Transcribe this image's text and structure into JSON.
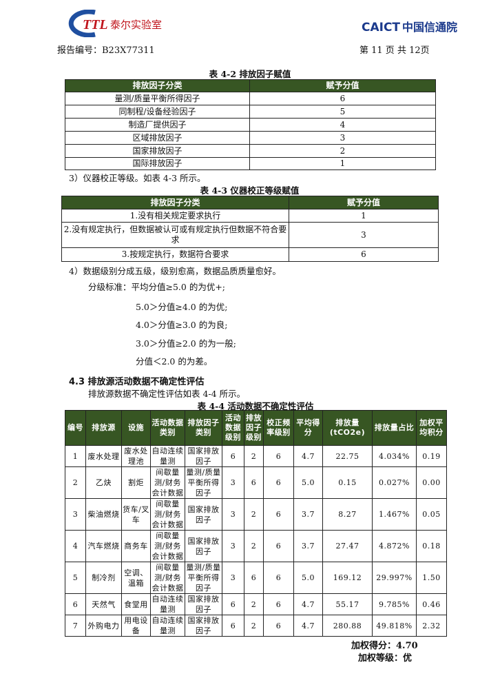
{
  "header": {
    "logo_left": "TTL泰尔实验室",
    "logo_right_en": "CAICT",
    "logo_right_cn": "中国信通院",
    "report_no": "报告编号：B23X77311",
    "page": "第 11 页  共 12页"
  },
  "t42": {
    "caption": "表 4-2 排放因子赋值",
    "headers": [
      "排放因子分类",
      "赋予分值"
    ],
    "rows": [
      [
        "量测/质量平衡所得因子",
        "6"
      ],
      [
        "同制程/设备经验因子",
        "5"
      ],
      [
        "制造厂提供因子",
        "4"
      ],
      [
        "区域排放因子",
        "3"
      ],
      [
        "国家排放因子",
        "2"
      ],
      [
        "国际排放因子",
        "1"
      ]
    ]
  },
  "p3": "3）仪器校正等级。如表 4-3 所示。",
  "t43": {
    "caption": "表 4-3 仪器校正等级赋值",
    "headers": [
      "排放因子分类",
      "赋予分值"
    ],
    "rows": [
      [
        "1.没有相关规定要求执行",
        "1"
      ],
      [
        "2.没有规定执行，但数据被认可或有规定执行但数据不符合要求",
        "3"
      ],
      [
        "3.按规定执行，数据符合要求",
        "6"
      ]
    ]
  },
  "p4": "4）数据级别分成五级，级别愈高，数据品质质量愈好。",
  "grades": [
    "分级标准：平均分值≥5.0 的为优+;",
    "5.0＞分值≥4.0 的为优;",
    "4.0＞分值≥3.0 的为良;",
    "3.0＞分值≥2.0 的为一般;",
    "分值＜2.0 的为差。"
  ],
  "s43": {
    "title": "4.3 排放源活动数据不确定性评估",
    "intro": "排放源数据不确定性评估如表 4-4 所示。"
  },
  "t44": {
    "caption": "表 4-4 活动数据不确定性评估",
    "headers": [
      "编号",
      "排放源",
      "设施",
      "活动数据类别",
      "排放因子类别",
      "活动数据级别",
      "排放因子级别",
      "校正频率级别",
      "平均得分",
      "排放量(tCO2e)",
      "排放量占比",
      "加权平均积分"
    ],
    "rows": [
      [
        "1",
        "废水处理",
        "废水处理池",
        "自动连续量测",
        "国家排放因子",
        "6",
        "2",
        "6",
        "4.7",
        "22.75",
        "4.034%",
        "0.19"
      ],
      [
        "2",
        "乙炔",
        "割炬",
        "间歇量测/财务会计数据",
        "量测/质量平衡所得因子",
        "3",
        "6",
        "6",
        "5.0",
        "0.15",
        "0.027%",
        "0.00"
      ],
      [
        "3",
        "柴油燃烧",
        "货车/叉车",
        "间歇量测/财务会计数据",
        "国家排放因子",
        "3",
        "2",
        "6",
        "3.7",
        "8.27",
        "1.467%",
        "0.05"
      ],
      [
        "4",
        "汽车燃烧",
        "商务车",
        "间歇量测/财务会计数据",
        "国家排放因子",
        "3",
        "2",
        "6",
        "3.7",
        "27.47",
        "4.872%",
        "0.18"
      ],
      [
        "5",
        "制冷剂",
        "空调、温箱",
        "间歇量测/财务会计数据",
        "量测/质量平衡所得因子",
        "3",
        "6",
        "6",
        "5.0",
        "169.12",
        "29.997%",
        "1.50"
      ],
      [
        "6",
        "天然气",
        "食堂用",
        "自动连续量测",
        "国家排放因子",
        "6",
        "2",
        "6",
        "4.7",
        "55.17",
        "9.785%",
        "0.46"
      ],
      [
        "7",
        "外购电力",
        "用电设备",
        "自动连续量测",
        "国家排放因子",
        "6",
        "2",
        "6",
        "4.7",
        "280.88",
        "49.818%",
        "2.32"
      ]
    ]
  },
  "summary": {
    "score": "加权得分：4.70",
    "grade": "加权等级：优"
  },
  "colors": {
    "header_green": "#375623",
    "ttl_red": "#c0141c",
    "ttl_blue": "#1f4fa0",
    "caict_blue": "#1b3a8c"
  }
}
